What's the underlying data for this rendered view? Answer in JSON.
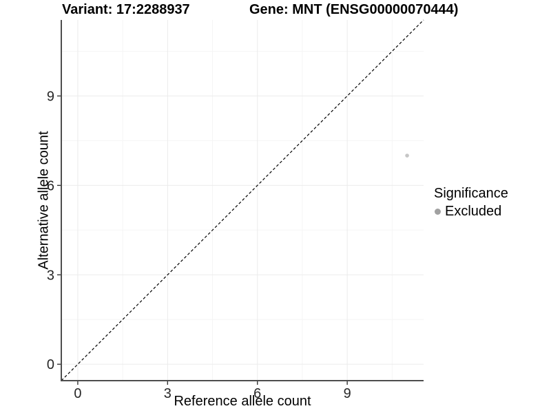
{
  "chart_data": {
    "type": "scatter",
    "titles": {
      "left": "Variant: 17:2288937",
      "right": "Gene: MNT (ENSG00000070444)"
    },
    "xlabel": "Reference allele count",
    "ylabel": "Alternative allele count",
    "xlim": [
      -0.55,
      11.55
    ],
    "ylim": [
      -0.55,
      11.55
    ],
    "xticks": [
      0,
      3,
      6,
      9
    ],
    "yticks": [
      0,
      3,
      6,
      9
    ],
    "minor_xticks": [
      1.5,
      4.5,
      7.5,
      10.5
    ],
    "minor_yticks": [
      1.5,
      4.5,
      7.5,
      10.5
    ],
    "grid": "major+minor",
    "series": [
      {
        "name": "Excluded",
        "color": "#c6c6c6",
        "points": [
          {
            "x": 11,
            "y": 7
          }
        ]
      }
    ],
    "reference_line": {
      "slope": 1,
      "intercept": 0,
      "style": "dashed",
      "color": "#000000"
    },
    "legend": {
      "position": "right",
      "title": "Significance",
      "entries": [
        {
          "label": "Excluded",
          "marker_color": "#a1a1a1"
        }
      ]
    },
    "colors": {
      "background": "#ffffff",
      "axis_line": "#4d4d4d",
      "tick_mark": "#333333",
      "tick_text": "#262626",
      "grid_major": "#ebebeb",
      "grid_minor": "#f5f5f5"
    }
  }
}
